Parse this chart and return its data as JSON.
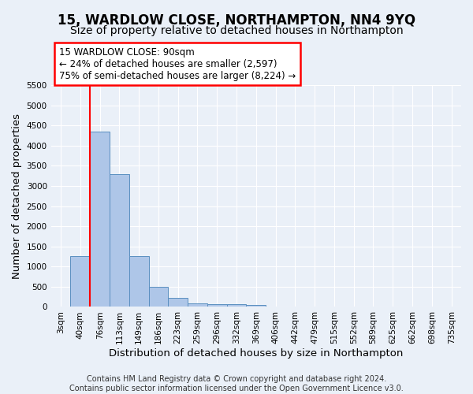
{
  "title": "15, WARDLOW CLOSE, NORTHAMPTON, NN4 9YQ",
  "subtitle": "Size of property relative to detached houses in Northampton",
  "xlabel": "Distribution of detached houses by size in Northampton",
  "ylabel": "Number of detached properties",
  "footer_line1": "Contains HM Land Registry data © Crown copyright and database right 2024.",
  "footer_line2": "Contains public sector information licensed under the Open Government Licence v3.0.",
  "bar_labels": [
    "3sqm",
    "40sqm",
    "76sqm",
    "113sqm",
    "149sqm",
    "186sqm",
    "223sqm",
    "259sqm",
    "296sqm",
    "332sqm",
    "369sqm",
    "406sqm",
    "442sqm",
    "479sqm",
    "515sqm",
    "552sqm",
    "589sqm",
    "625sqm",
    "662sqm",
    "698sqm",
    "735sqm"
  ],
  "bar_values": [
    0,
    1270,
    4350,
    3300,
    1270,
    490,
    215,
    90,
    75,
    60,
    55,
    0,
    0,
    0,
    0,
    0,
    0,
    0,
    0,
    0,
    0
  ],
  "bar_color": "#aec6e8",
  "bar_edge_color": "#5a8fc0",
  "red_line_bin_index": 2,
  "annotation_text": "15 WARDLOW CLOSE: 90sqm\n← 24% of detached houses are smaller (2,597)\n75% of semi-detached houses are larger (8,224) →",
  "annotation_box_color": "white",
  "annotation_box_edge_color": "red",
  "ylim": [
    0,
    5500
  ],
  "yticks": [
    0,
    500,
    1000,
    1500,
    2000,
    2500,
    3000,
    3500,
    4000,
    4500,
    5000,
    5500
  ],
  "background_color": "#eaf0f8",
  "grid_color": "#ffffff",
  "title_fontsize": 12,
  "subtitle_fontsize": 10,
  "axis_label_fontsize": 9.5,
  "tick_fontsize": 7.5,
  "footer_fontsize": 7,
  "annotation_fontsize": 8.5
}
